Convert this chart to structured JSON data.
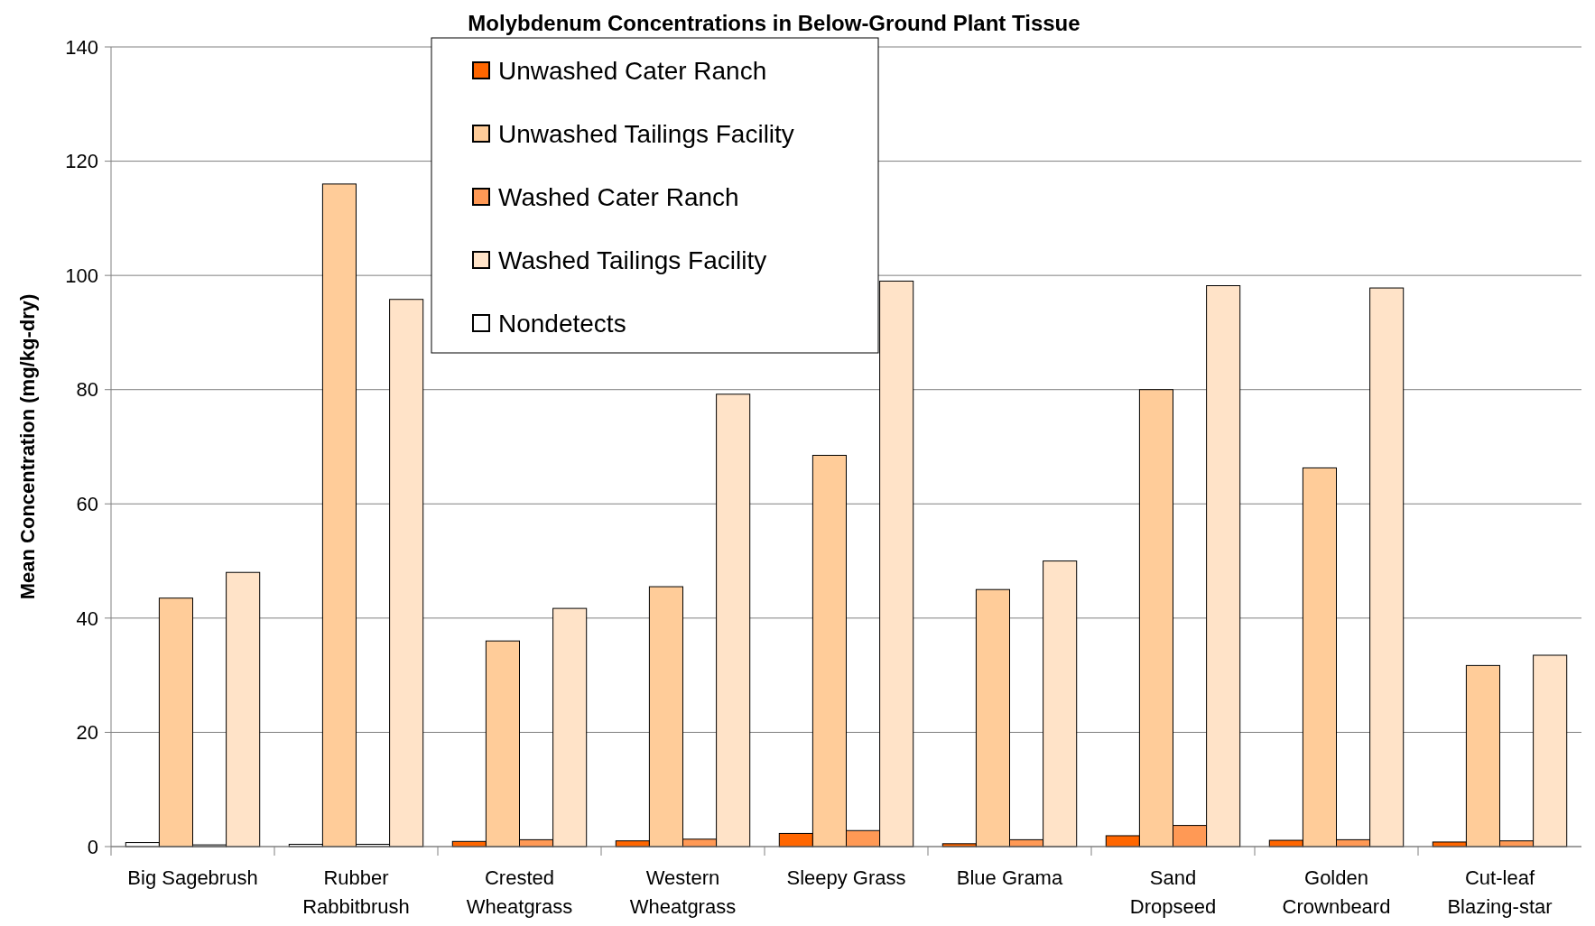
{
  "chart_data": {
    "type": "bar",
    "title": "Molybdenum Concentrations in Below-Ground Plant Tissue",
    "ylabel": "Mean Concentration (mg/kg-dry)",
    "categories": [
      "Big Sagebrush",
      "Rubber\nRabbitbrush",
      "Crested\nWheatgrass",
      "Western\nWheatgrass",
      "Sleepy Grass",
      "Blue Grama",
      "Sand\nDropseed",
      "Golden\nCrownbeard",
      "Cut-leaf\nBlazing-star"
    ],
    "series": [
      {
        "name": "Unwashed Cater Ranch",
        "color": "#ff6600",
        "colors": [
          "#ffffff",
          "#ffffff",
          "#ff6600",
          "#ff6600",
          "#ff6600",
          "#ff6600",
          "#ff6600",
          "#ff6600",
          "#ff6600"
        ],
        "values": [
          0.7,
          0.4,
          0.9,
          1.0,
          2.3,
          0.5,
          1.9,
          1.1,
          0.8
        ]
      },
      {
        "name": "Unwashed Tailings Facility",
        "color": "#ffcc99",
        "values": [
          43.5,
          116,
          36,
          45.5,
          68.5,
          45,
          80,
          66.3,
          31.7
        ]
      },
      {
        "name": "Washed Cater Ranch",
        "color": "#ff9955",
        "colors": [
          "#ffffff",
          "#ffffff",
          "#ff9955",
          "#ff9955",
          "#ff9955",
          "#ff9955",
          "#ff9955",
          "#ff9955",
          "#ff9955"
        ],
        "values": [
          0.3,
          0.4,
          1.2,
          1.3,
          2.8,
          1.2,
          3.7,
          1.2,
          1.0
        ]
      },
      {
        "name": "Washed Tailings Facility",
        "color": "#ffe3c8",
        "values": [
          48,
          95.8,
          41.7,
          79.2,
          99,
          50,
          98.2,
          97.8,
          33.5
        ]
      },
      {
        "name": "Nondetects",
        "color": "#ffffff",
        "values": [
          null,
          null,
          null,
          null,
          null,
          null,
          null,
          null,
          null
        ]
      }
    ],
    "ylim": [
      0,
      140
    ],
    "yticks": [
      0,
      20,
      40,
      60,
      80,
      100,
      120,
      140
    ],
    "grid": "y",
    "legend": "top left"
  }
}
